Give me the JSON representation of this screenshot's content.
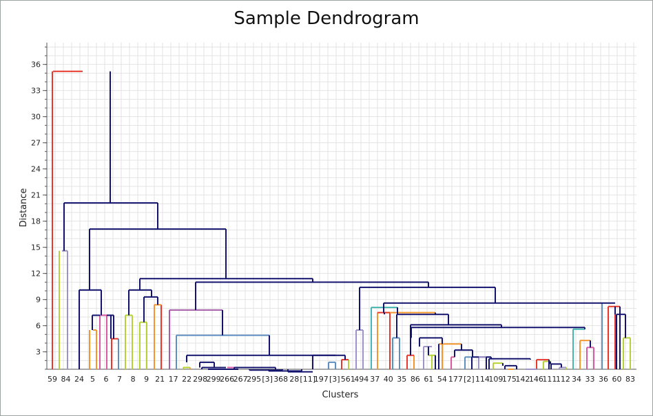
{
  "chart_data": {
    "type": "dendrogram",
    "title": "Sample Dendrogram",
    "xlabel": "Clusters",
    "ylabel": "Distance",
    "ylim": [
      1,
      38.5
    ],
    "yticks": [
      3,
      6,
      9,
      12,
      15,
      18,
      21,
      24,
      27,
      30,
      33,
      36
    ],
    "grid": true,
    "leaves": [
      "59",
      "84",
      "24",
      "5",
      "6",
      "7",
      "8",
      "9",
      "21",
      "17",
      "22",
      "298",
      "299",
      "266",
      "267",
      "295",
      "[3]",
      "368",
      "28",
      "[11]",
      "197",
      "[3]",
      "561",
      "494",
      "37",
      "40",
      "35",
      "86",
      "61",
      "54",
      "177",
      "[2]",
      "114",
      "109",
      "175",
      "142",
      "146",
      "111",
      "112",
      "34",
      "33",
      "36",
      "60",
      "83"
    ],
    "colors": {
      "merge": "#13136e",
      "red": "#e8372b",
      "olive": "#b5d334",
      "lavender": "#9f91c9",
      "orange": "#f5962d",
      "pink": "#d85aa0",
      "steel": "#5c8fbf",
      "teal": "#46b6b0",
      "purple": "#a55ba5",
      "grid": "#e3e3e3"
    },
    "links": [
      {
        "a": [
          76,
          77
        ],
        "b": [
          120,
          160
        ],
        "h": 35.2,
        "c": "red"
      },
      {
        "a": [
          120,
          160
        ],
        "b": [
          160,
          160
        ],
        "h": 35.2,
        "c": "merge"
      },
      {
        "a": [
          93,
          93
        ],
        "b": [
          229,
          229
        ],
        "h": 20.1,
        "c": "merge"
      },
      {
        "a": [
          86,
          90
        ],
        "b": [
          98,
          98
        ],
        "h": 14.6,
        "c": "olive"
      },
      {
        "a": [
          90,
          90
        ],
        "b": [
          98,
          98
        ],
        "h": 14.6,
        "c": "lavender"
      },
      {
        "a": [
          130,
          130
        ],
        "b": [
          328,
          328
        ],
        "h": 17.1,
        "c": "merge"
      },
      {
        "a": [
          115,
          115
        ],
        "b": [
          147,
          147
        ],
        "h": 10.1,
        "c": "merge"
      },
      {
        "a": [
          130,
          135
        ],
        "b": [
          135,
          140
        ],
        "h": 5.5,
        "c": "orange"
      },
      {
        "a": [
          135,
          135
        ],
        "b": [
          140,
          140
        ],
        "h": 5.5,
        "c": "orange"
      },
      {
        "a": [
          134,
          134
        ],
        "b": [
          161,
          161
        ],
        "h": 7.2,
        "c": "merge"
      },
      {
        "a": [
          150,
          150
        ],
        "b": [
          165,
          165
        ],
        "h": 7.2,
        "c": "merge"
      },
      {
        "a": [
          145,
          145
        ],
        "b": [
          155,
          155
        ],
        "h": 7.2,
        "c": "pink"
      },
      {
        "a": [
          162,
          162
        ],
        "b": [
          172,
          172
        ],
        "h": 4.5,
        "c": "red"
      },
      {
        "a": [
          187,
          187
        ],
        "b": [
          220,
          220
        ],
        "h": 10.1,
        "c": "merge"
      },
      {
        "a": [
          182,
          182
        ],
        "b": [
          192,
          192
        ],
        "h": 7.2,
        "c": "olive"
      },
      {
        "a": [
          209,
          209
        ],
        "b": [
          229,
          229
        ],
        "h": 9.3,
        "c": "merge"
      },
      {
        "a": [
          203,
          203
        ],
        "b": [
          213,
          213
        ],
        "h": 6.4,
        "c": "olive"
      },
      {
        "a": [
          224,
          224
        ],
        "b": [
          234,
          234
        ],
        "h": 8.4,
        "c": "orange"
      },
      {
        "a": [
          203,
          203
        ],
        "b": [
          454,
          454
        ],
        "h": 11.4,
        "c": "merge"
      },
      {
        "a": [
          284,
          284
        ],
        "b": [
          622,
          622
        ],
        "h": 11.0,
        "c": "merge"
      },
      {
        "a": [
          246,
          246
        ],
        "b": [
          323,
          323
        ],
        "h": 7.8,
        "c": "purple"
      },
      {
        "a": [
          284,
          284
        ],
        "b": [
          284,
          284
        ],
        "h": 7.8,
        "c": "merge"
      },
      {
        "a": [
          256,
          256
        ],
        "b": [
          391,
          391
        ],
        "h": 4.9,
        "c": "steel"
      },
      {
        "a": [
          271,
          271
        ],
        "b": [
          487,
          487
        ],
        "h": 2.6,
        "c": "merge"
      },
      {
        "a": [
          266,
          266
        ],
        "b": [
          276,
          276
        ],
        "h": 1.2,
        "c": "olive"
      },
      {
        "a": [
          290,
          290
        ],
        "b": [
          311,
          311
        ],
        "h": 1.8,
        "c": "merge"
      },
      {
        "a": [
          293,
          293
        ],
        "b": [
          328,
          328
        ],
        "h": 1.2,
        "c": "merge"
      },
      {
        "a": [
          302,
          302
        ],
        "b": [
          346,
          346
        ],
        "h": 1.0,
        "c": "merge"
      },
      {
        "a": [
          330,
          330
        ],
        "b": [
          352,
          352
        ],
        "h": 1.2,
        "c": "pink"
      },
      {
        "a": [
          340,
          340
        ],
        "b": [
          400,
          400
        ],
        "h": 1.2,
        "c": "merge"
      },
      {
        "a": [
          362,
          362
        ],
        "b": [
          410,
          410
        ],
        "h": 0.9,
        "c": "merge"
      },
      {
        "a": [
          390,
          390
        ],
        "b": [
          438,
          438
        ],
        "h": 0.8,
        "c": "merge"
      },
      {
        "a": [
          418,
          418
        ],
        "b": [
          454,
          454
        ],
        "h": 0.7,
        "c": "merge"
      },
      {
        "a": [
          477,
          477
        ],
        "b": [
          487,
          487
        ],
        "h": 1.8,
        "c": "steel"
      },
      {
        "a": [
          496,
          496
        ],
        "b": [
          506,
          506
        ],
        "h": 2.1,
        "c": "red"
      },
      {
        "a": [
          454,
          454
        ],
        "b": [
          501,
          501
        ],
        "h": 2.6,
        "c": "merge"
      },
      {
        "a": [
          522,
          522
        ],
        "b": [
          719,
          719
        ],
        "h": 10.4,
        "c": "merge"
      },
      {
        "a": [
          517,
          517
        ],
        "b": [
          527,
          527
        ],
        "h": 5.5,
        "c": "lavender"
      },
      {
        "a": [
          539,
          539
        ],
        "b": [
          577,
          577
        ],
        "h": 8.1,
        "c": "teal"
      },
      {
        "a": [
          557,
          557
        ],
        "b": [
          874,
          874
        ],
        "h": 8.6,
        "c": "merge"
      },
      {
        "a": [
          558,
          558
        ],
        "b": [
          632,
          632
        ],
        "h": 7.5,
        "c": "orange"
      },
      {
        "a": [
          548,
          548
        ],
        "b": [
          566,
          566
        ],
        "h": 7.5,
        "c": "red"
      },
      {
        "a": [
          576,
          576
        ],
        "b": [
          651,
          651
        ],
        "h": 7.3,
        "c": "merge"
      },
      {
        "a": [
          570,
          570
        ],
        "b": [
          580,
          580
        ],
        "h": 4.6,
        "c": "steel"
      },
      {
        "a": [
          596,
          596
        ],
        "b": [
          728,
          728
        ],
        "h": 6.1,
        "c": "merge"
      },
      {
        "a": [
          591,
          591
        ],
        "b": [
          601,
          601
        ],
        "h": 2.6,
        "c": "red"
      },
      {
        "a": [
          597,
          597
        ],
        "b": [
          849,
          849
        ],
        "h": 5.8,
        "c": "merge"
      },
      {
        "a": [
          609,
          609
        ],
        "b": [
          642,
          642
        ],
        "h": 4.6,
        "c": "merge"
      },
      {
        "a": [
          615,
          615
        ],
        "b": [
          627,
          627
        ],
        "h": 3.6,
        "c": "lavender"
      },
      {
        "a": [
          622,
          622
        ],
        "b": [
          632,
          632
        ],
        "h": 2.6,
        "c": "olive"
      },
      {
        "a": [
          637,
          637
        ],
        "b": [
          670,
          670
        ],
        "h": 3.9,
        "c": "orange"
      },
      {
        "a": [
          655,
          655
        ],
        "b": [
          660,
          660
        ],
        "h": 2.4,
        "c": "pink"
      },
      {
        "a": [
          660,
          660
        ],
        "b": [
          686,
          686
        ],
        "h": 3.2,
        "c": "merge"
      },
      {
        "a": [
          675,
          675
        ],
        "b": [
          685,
          685
        ],
        "h": 2.4,
        "c": "steel"
      },
      {
        "a": [
          686,
          686
        ],
        "b": [
          713,
          713
        ],
        "h": 2.4,
        "c": "merge"
      },
      {
        "a": [
          695,
          695
        ],
        "b": [
          706,
          706
        ],
        "h": 2.4,
        "c": "lavender"
      },
      {
        "a": [
          710,
          710
        ],
        "b": [
          770,
          770
        ],
        "h": 2.2,
        "c": "merge"
      },
      {
        "a": [
          716,
          716
        ],
        "b": [
          730,
          730
        ],
        "h": 1.7,
        "c": "olive"
      },
      {
        "a": [
          733,
          733
        ],
        "b": [
          750,
          750
        ],
        "h": 1.4,
        "c": "merge"
      },
      {
        "a": [
          738,
          738
        ],
        "b": [
          745,
          745
        ],
        "h": 1.0,
        "c": "orange"
      },
      {
        "a": [
          763,
          763
        ],
        "b": [
          779,
          779
        ],
        "h": 1.0,
        "c": "lavender"
      },
      {
        "a": [
          779,
          779
        ],
        "b": [
          797,
          797
        ],
        "h": 2.1,
        "c": "red"
      },
      {
        "a": [
          789,
          789
        ],
        "b": [
          799,
          799
        ],
        "h": 1.9,
        "c": "olive"
      },
      {
        "a": [
          800,
          800
        ],
        "b": [
          815,
          815
        ],
        "h": 1.6,
        "c": "merge"
      },
      {
        "a": [
          812,
          812
        ],
        "b": [
          822,
          822
        ],
        "h": 1.2,
        "c": "lavender"
      },
      {
        "a": [
          832,
          832
        ],
        "b": [
          849,
          849
        ],
        "h": 5.6,
        "c": "teal"
      },
      {
        "a": [
          842,
          842
        ],
        "b": [
          857,
          857
        ],
        "h": 4.3,
        "c": "orange"
      },
      {
        "a": [
          852,
          852
        ],
        "b": [
          862,
          862
        ],
        "h": 3.5,
        "c": "pink"
      },
      {
        "a": [
          874,
          874
        ],
        "b": [
          893,
          893
        ],
        "h": 8.6,
        "c": "merge"
      },
      {
        "a": [
          883,
          883
        ],
        "b": [
          900,
          900
        ],
        "h": 8.2,
        "c": "red"
      },
      {
        "a": [
          895,
          895
        ],
        "b": [
          908,
          908
        ],
        "h": 7.3,
        "c": "merge"
      },
      {
        "a": [
          905,
          905
        ],
        "b": [
          915,
          915
        ],
        "h": 4.6,
        "c": "olive"
      }
    ],
    "stems": [
      {
        "x": 76,
        "h": 35.2,
        "c": "red"
      },
      {
        "x": 86,
        "h": 14.6,
        "c": "olive"
      },
      {
        "x": 98,
        "h": 14.6,
        "c": "lavender"
      },
      {
        "x": 115,
        "h": 10.1,
        "c": "merge"
      },
      {
        "x": 130,
        "h": 5.5,
        "c": "orange"
      },
      {
        "x": 140,
        "h": 5.5,
        "c": "orange"
      },
      {
        "x": 145,
        "h": 7.2,
        "c": "pink"
      },
      {
        "x": 155,
        "h": 7.2,
        "c": "pink"
      },
      {
        "x": 162,
        "h": 4.5,
        "c": "red"
      },
      {
        "x": 172,
        "h": 4.5,
        "c": "steel"
      },
      {
        "x": 182,
        "h": 7.2,
        "c": "olive"
      },
      {
        "x": 192,
        "h": 7.2,
        "c": "olive"
      },
      {
        "x": 203,
        "h": 6.4,
        "c": "olive"
      },
      {
        "x": 213,
        "h": 6.4,
        "c": "olive"
      },
      {
        "x": 224,
        "h": 8.4,
        "c": "orange"
      },
      {
        "x": 234,
        "h": 8.4,
        "c": "red"
      },
      {
        "x": 246,
        "h": 7.8,
        "c": "purple"
      },
      {
        "x": 256,
        "h": 4.9,
        "c": "steel"
      },
      {
        "x": 266,
        "h": 1.2,
        "c": "olive"
      },
      {
        "x": 276,
        "h": 1.2,
        "c": "orange"
      },
      {
        "x": 477,
        "h": 1.8,
        "c": "steel"
      },
      {
        "x": 487,
        "h": 1.8,
        "c": "steel"
      },
      {
        "x": 496,
        "h": 2.1,
        "c": "red"
      },
      {
        "x": 506,
        "h": 2.1,
        "c": "olive"
      },
      {
        "x": 517,
        "h": 5.5,
        "c": "lavender"
      },
      {
        "x": 527,
        "h": 5.5,
        "c": "lavender"
      },
      {
        "x": 539,
        "h": 8.1,
        "c": "teal"
      },
      {
        "x": 548,
        "h": 7.5,
        "c": "orange"
      },
      {
        "x": 566,
        "h": 7.5,
        "c": "red"
      },
      {
        "x": 570,
        "h": 4.6,
        "c": "steel"
      },
      {
        "x": 580,
        "h": 4.6,
        "c": "steel"
      },
      {
        "x": 591,
        "h": 2.6,
        "c": "red"
      },
      {
        "x": 601,
        "h": 2.6,
        "c": "orange"
      },
      {
        "x": 615,
        "h": 3.6,
        "c": "lavender"
      },
      {
        "x": 627,
        "h": 2.6,
        "c": "olive"
      },
      {
        "x": 642,
        "h": 3.9,
        "c": "orange"
      },
      {
        "x": 655,
        "h": 2.4,
        "c": "pink"
      },
      {
        "x": 675,
        "h": 2.4,
        "c": "steel"
      },
      {
        "x": 695,
        "h": 2.4,
        "c": "lavender"
      },
      {
        "x": 716,
        "h": 1.7,
        "c": "olive"
      },
      {
        "x": 738,
        "h": 1.0,
        "c": "orange"
      },
      {
        "x": 763,
        "h": 1.0,
        "c": "lavender"
      },
      {
        "x": 779,
        "h": 2.1,
        "c": "red"
      },
      {
        "x": 789,
        "h": 1.9,
        "c": "olive"
      },
      {
        "x": 812,
        "h": 1.2,
        "c": "lavender"
      },
      {
        "x": 822,
        "h": 1.2,
        "c": "olive"
      },
      {
        "x": 832,
        "h": 5.6,
        "c": "teal"
      },
      {
        "x": 842,
        "h": 4.3,
        "c": "orange"
      },
      {
        "x": 852,
        "h": 3.5,
        "c": "pink"
      },
      {
        "x": 862,
        "h": 3.5,
        "c": "pink"
      },
      {
        "x": 874,
        "h": 8.6,
        "c": "steel"
      },
      {
        "x": 883,
        "h": 8.2,
        "c": "red"
      },
      {
        "x": 893,
        "h": 8.2,
        "c": "red"
      },
      {
        "x": 905,
        "h": 4.6,
        "c": "olive"
      },
      {
        "x": 915,
        "h": 4.6,
        "c": "olive"
      }
    ]
  }
}
